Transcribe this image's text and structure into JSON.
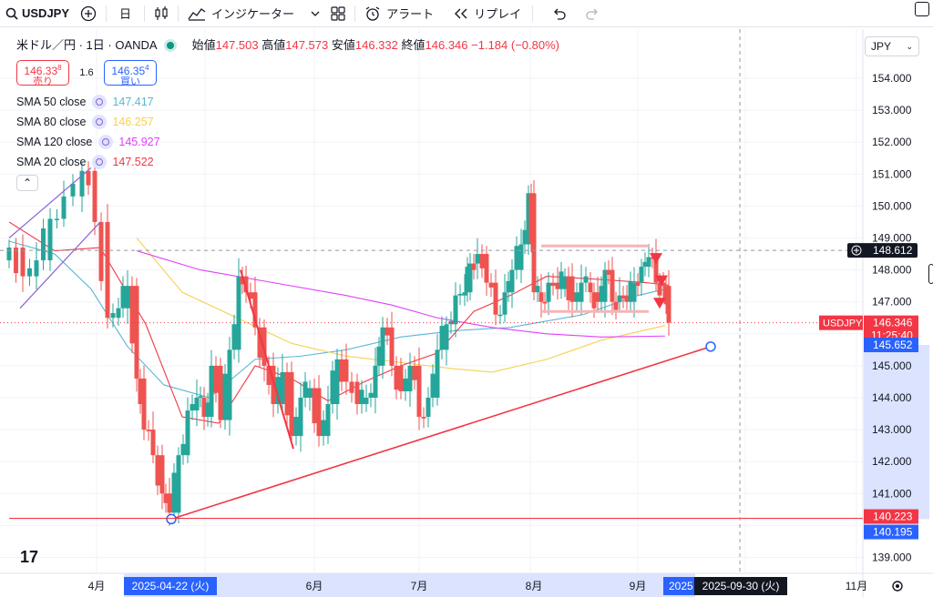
{
  "toolbar": {
    "symbol": "USDJPY",
    "interval": "日",
    "indicators_label": "インジケーター",
    "alert_label": "アラート",
    "replay_label": "リプレイ"
  },
  "legend": {
    "title": "米ドル／円 · 1日 · OANDA",
    "open_label": "始値",
    "open": "147.503",
    "high_label": "高値",
    "high": "147.573",
    "low_label": "安値",
    "low": "146.332",
    "close_label": "終値",
    "close": "146.346",
    "change": "−1.184 (−0.80%)",
    "sell_price_main": "146.33",
    "sell_price_sup": "8",
    "sell_label": "売り",
    "spread": "1.6",
    "buy_price_main": "146.35",
    "buy_price_sup": "4",
    "buy_label": "買い"
  },
  "indicators": [
    {
      "label": "SMA 50 close",
      "value": "147.417",
      "color": "#5ab7d6"
    },
    {
      "label": "SMA 80 close",
      "value": "146.257",
      "color": "#f5d24c"
    },
    {
      "label": "SMA 120 close",
      "value": "145.927",
      "color": "#e040fb"
    },
    {
      "label": "SMA 20 close",
      "value": "147.522",
      "color": "#f23645"
    }
  ],
  "price_axis": {
    "currency": "JPY",
    "ticks": [
      "154.000",
      "153.000",
      "152.000",
      "151.000",
      "150.000",
      "149.000",
      "148.000",
      "147.000",
      "145.000",
      "144.000",
      "143.000",
      "142.000",
      "141.000",
      "139.000"
    ],
    "crosshair_price": "148.612",
    "last_symbol": "USDJPY",
    "last_price": "146.346",
    "countdown": "11:25:40",
    "range_top": "145.652",
    "line_price": "140.223",
    "range_bottom": "140.195"
  },
  "time_axis": {
    "labels": [
      "4月",
      "6月",
      "7月",
      "8月",
      "9月",
      "11月"
    ],
    "range_start": "2025-04-22 (火)",
    "range_end_partial": "2025",
    "crosshair_date": "2025-09-30 (火)"
  },
  "colors": {
    "up": "#26a69a",
    "down": "#ef5350",
    "accent": "#2962ff"
  },
  "chart_data": {
    "type": "candlestick",
    "title": "米ドル／円 · 1日 · OANDA",
    "x": "daily 2025",
    "ylim": [
      138.5,
      155
    ],
    "last": {
      "open": 147.503,
      "high": 147.573,
      "low": 146.332,
      "close": 146.346
    },
    "series": [
      {
        "name": "SMA 50 close",
        "value": 147.417
      },
      {
        "name": "SMA 80 close",
        "value": 146.257
      },
      {
        "name": "SMA 120 close",
        "value": 145.927
      },
      {
        "name": "SMA 20 close",
        "value": 147.522
      }
    ],
    "trendline": {
      "from": {
        "date": "2025-04-22",
        "price": 140.2
      },
      "to": {
        "date": "2025-10-08",
        "price": 145.6
      }
    },
    "horizontal_line": 140.223,
    "range_box": [
      146.7,
      148.75
    ]
  }
}
